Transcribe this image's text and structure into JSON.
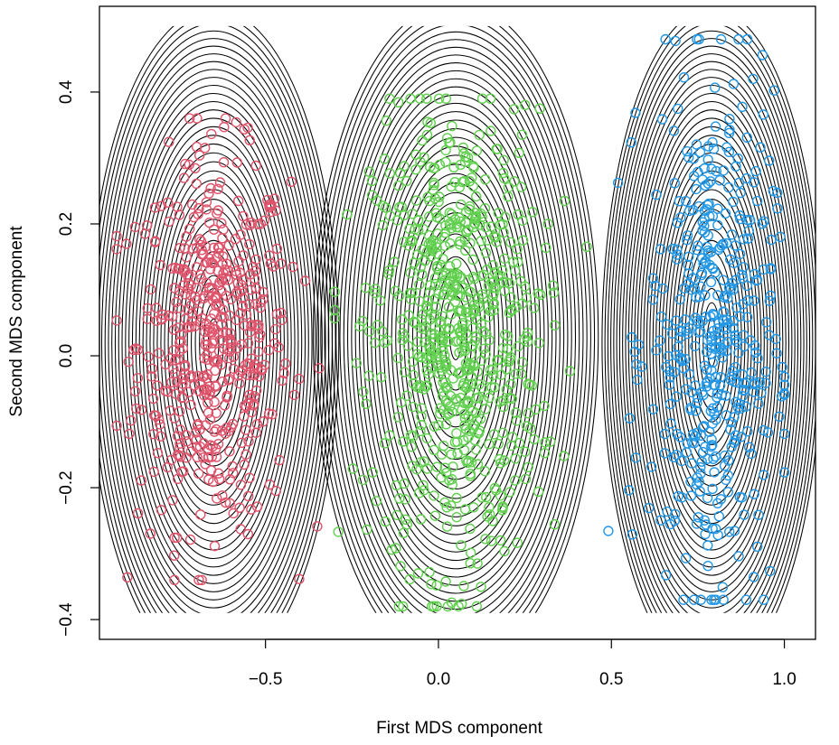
{
  "chart_data": {
    "type": "scatter",
    "title": "",
    "xlabel": "First MDS component",
    "ylabel": "Second MDS component",
    "xlim": [
      -0.98,
      1.09
    ],
    "ylim": [
      -0.43,
      0.53
    ],
    "x_ticks": [
      -0.5,
      0.0,
      0.5,
      1.0
    ],
    "x_tick_labels": [
      "−0.5",
      "0.0",
      "0.5",
      "1.0"
    ],
    "y_ticks": [
      -0.4,
      -0.2,
      0.0,
      0.2,
      0.4
    ],
    "y_tick_labels": [
      "−0.4",
      "−0.2",
      "0.0",
      "0.2",
      "0.4"
    ],
    "grid": false,
    "legend": "none",
    "marker": "open-circle",
    "contours": {
      "color": "#000000",
      "y_range": [
        -0.39,
        0.5
      ],
      "description": "density contours around each cluster"
    },
    "series": [
      {
        "color": "#DF536B",
        "center": [
          -0.65,
          0.02
        ],
        "spread": [
          0.11,
          0.14
        ],
        "n": 500,
        "x_range": [
          -0.93,
          -0.3
        ],
        "y_range": [
          -0.34,
          0.36
        ]
      },
      {
        "color": "#61D04F",
        "center": [
          0.05,
          0.03
        ],
        "spread": [
          0.12,
          0.17
        ],
        "n": 700,
        "x_range": [
          -0.3,
          0.43
        ],
        "y_range": [
          -0.38,
          0.39
        ]
      },
      {
        "color": "#2297E6",
        "center": [
          0.79,
          0.02
        ],
        "spread": [
          0.09,
          0.19
        ],
        "n": 450,
        "x_range": [
          0.46,
          1.0
        ],
        "y_range": [
          -0.37,
          0.48
        ]
      }
    ]
  }
}
